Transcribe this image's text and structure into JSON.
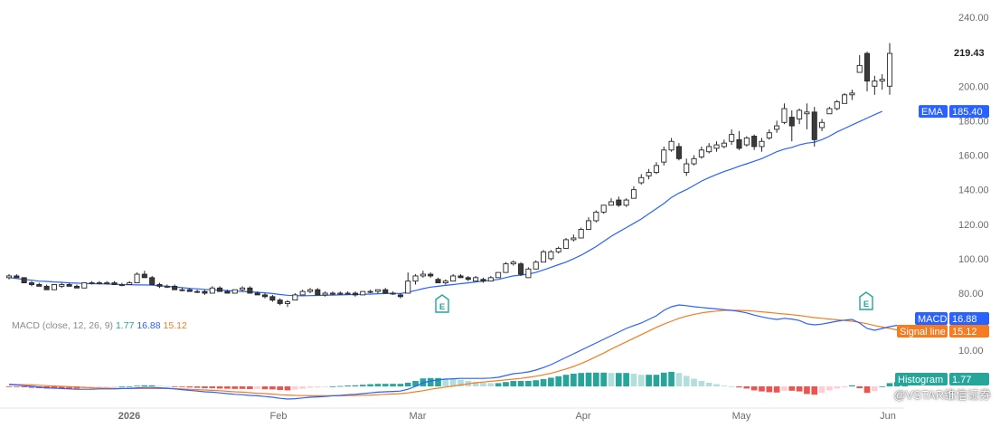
{
  "chart_data": [
    {
      "type": "candlestick",
      "panel": "price",
      "yaxis_ticks": [
        "80.00",
        "100.00",
        "120.00",
        "140.00",
        "160.00",
        "180.00",
        "200.00",
        "240.00"
      ],
      "ylim": [
        70,
        245
      ],
      "x_months": [
        "2026",
        "Feb",
        "Mar",
        "Apr",
        "May",
        "Jun"
      ],
      "last_price_label": "219.43",
      "ema_label": "EMA",
      "ema_value": "185.40",
      "earnings_marker": "E",
      "candles": [
        [
          89,
          91,
          88,
          90
        ],
        [
          90,
          91,
          89,
          89
        ],
        [
          89,
          89,
          86,
          86
        ],
        [
          86,
          87,
          84,
          85
        ],
        [
          85,
          86,
          84,
          84
        ],
        [
          84,
          85,
          82,
          82
        ],
        [
          82,
          85,
          82,
          85
        ],
        [
          84,
          86,
          83,
          85
        ],
        [
          85,
          86,
          84,
          84
        ],
        [
          84,
          85,
          83,
          83
        ],
        [
          83,
          86,
          83,
          86
        ],
        [
          86,
          87,
          85,
          86
        ],
        [
          86,
          87,
          85,
          86
        ],
        [
          86,
          87,
          85,
          86
        ],
        [
          86,
          87,
          85,
          85
        ],
        [
          85,
          86,
          84,
          85
        ],
        [
          85,
          87,
          85,
          86
        ],
        [
          86,
          92,
          86,
          91
        ],
        [
          91,
          93,
          89,
          89
        ],
        [
          89,
          90,
          85,
          85
        ],
        [
          85,
          86,
          83,
          84
        ],
        [
          84,
          85,
          83,
          84
        ],
        [
          84,
          85,
          82,
          82
        ],
        [
          82,
          83,
          81,
          82
        ],
        [
          82,
          83,
          81,
          81
        ],
        [
          81,
          82,
          80,
          81
        ],
        [
          81,
          82,
          79,
          80
        ],
        [
          80,
          84,
          80,
          83
        ],
        [
          83,
          84,
          81,
          81
        ],
        [
          81,
          82,
          80,
          80
        ],
        [
          80,
          82,
          80,
          82
        ],
        [
          82,
          84,
          81,
          83
        ],
        [
          83,
          84,
          80,
          80
        ],
        [
          80,
          81,
          79,
          79
        ],
        [
          79,
          80,
          77,
          78
        ],
        [
          78,
          79,
          75,
          76
        ],
        [
          76,
          77,
          73,
          74
        ],
        [
          74,
          76,
          72,
          75
        ],
        [
          76,
          80,
          76,
          79
        ],
        [
          79,
          82,
          79,
          81
        ],
        [
          81,
          83,
          80,
          82
        ],
        [
          82,
          83,
          79,
          79
        ],
        [
          79,
          81,
          78,
          80
        ],
        [
          80,
          81,
          79,
          80
        ],
        [
          80,
          81,
          79,
          80
        ],
        [
          80,
          81,
          79,
          80
        ],
        [
          80,
          81,
          78,
          79
        ],
        [
          79,
          81,
          79,
          81
        ],
        [
          81,
          82,
          80,
          81
        ],
        [
          81,
          82,
          80,
          82
        ],
        [
          82,
          83,
          80,
          80
        ],
        [
          80,
          81,
          79,
          80
        ],
        [
          79,
          80,
          77,
          78
        ],
        [
          80,
          92,
          80,
          87
        ],
        [
          87,
          91,
          85,
          90
        ],
        [
          90,
          93,
          89,
          91
        ],
        [
          91,
          92,
          89,
          90
        ],
        [
          88,
          89,
          86,
          86
        ],
        [
          86,
          88,
          85,
          87
        ],
        [
          87,
          91,
          87,
          90
        ],
        [
          90,
          91,
          89,
          89
        ],
        [
          89,
          90,
          87,
          88
        ],
        [
          87,
          90,
          87,
          89
        ],
        [
          88,
          89,
          86,
          87
        ],
        [
          87,
          90,
          87,
          89
        ],
        [
          89,
          92,
          89,
          92
        ],
        [
          92,
          98,
          92,
          97
        ],
        [
          97,
          99,
          96,
          98
        ],
        [
          97,
          98,
          90,
          91
        ],
        [
          89,
          95,
          89,
          94
        ],
        [
          94,
          99,
          94,
          98
        ],
        [
          98,
          105,
          98,
          104
        ],
        [
          100,
          105,
          99,
          104
        ],
        [
          104,
          107,
          103,
          106
        ],
        [
          106,
          112,
          106,
          111
        ],
        [
          111,
          114,
          110,
          112
        ],
        [
          112,
          118,
          112,
          117
        ],
        [
          117,
          124,
          117,
          122
        ],
        [
          122,
          128,
          121,
          127
        ],
        [
          127,
          131,
          126,
          131
        ],
        [
          131,
          135,
          131,
          133
        ],
        [
          134,
          136,
          130,
          131
        ],
        [
          131,
          135,
          130,
          134
        ],
        [
          135,
          142,
          135,
          140
        ],
        [
          144,
          149,
          143,
          147
        ],
        [
          148,
          152,
          146,
          150
        ],
        [
          150,
          156,
          149,
          154
        ],
        [
          156,
          165,
          154,
          163
        ],
        [
          163,
          170,
          162,
          168
        ],
        [
          165,
          167,
          157,
          158
        ],
        [
          150,
          158,
          148,
          155
        ],
        [
          155,
          160,
          154,
          158
        ],
        [
          159,
          165,
          158,
          163
        ],
        [
          162,
          167,
          161,
          165
        ],
        [
          164,
          168,
          162,
          166
        ],
        [
          165,
          169,
          164,
          167
        ],
        [
          168,
          175,
          166,
          172
        ],
        [
          169,
          174,
          163,
          164
        ],
        [
          166,
          171,
          165,
          170
        ],
        [
          171,
          172,
          163,
          165
        ],
        [
          165,
          170,
          162,
          168
        ],
        [
          170,
          175,
          169,
          173
        ],
        [
          175,
          180,
          173,
          177
        ],
        [
          179,
          190,
          178,
          187
        ],
        [
          182,
          186,
          168,
          177
        ],
        [
          181,
          187,
          178,
          186
        ],
        [
          184,
          190,
          175,
          185
        ],
        [
          185,
          188,
          165,
          169
        ],
        [
          176,
          181,
          174,
          179
        ],
        [
          184,
          188,
          184,
          187
        ],
        [
          187,
          192,
          186,
          191
        ],
        [
          190,
          196,
          190,
          195
        ],
        [
          195,
          198,
          192,
          196
        ],
        [
          208,
          218,
          208,
          212
        ],
        [
          219,
          220,
          197,
          203
        ],
        [
          200,
          206,
          195,
          203
        ],
        [
          203,
          207,
          198,
          204
        ],
        [
          200,
          225,
          195,
          219
        ]
      ],
      "ema": [
        89,
        88.5,
        88,
        87.5,
        87,
        86.8,
        86.5,
        86.3,
        86,
        85.8,
        85.6,
        85.5,
        85.4,
        85.3,
        85.2,
        85,
        84.9,
        84.8,
        84.8,
        84.6,
        84.3,
        84,
        83.6,
        83.2,
        82.8,
        82.5,
        82.2,
        82,
        81.8,
        81.5,
        81.2,
        81,
        80.8,
        80.5,
        80.2,
        79.8,
        79.2,
        78.8,
        78.6,
        78.5,
        78.6,
        78.7,
        78.8,
        78.9,
        79,
        79.1,
        79.2,
        79.3,
        79.5,
        79.7,
        79.8,
        79.9,
        79.8,
        80.5,
        81.5,
        82.6,
        83.5,
        84,
        84.5,
        85,
        85.5,
        86,
        86.5,
        87,
        87.4,
        88,
        89,
        90,
        90.5,
        91,
        92,
        93.5,
        95,
        96.5,
        98,
        100,
        102,
        104.5,
        107,
        110,
        113,
        115.5,
        118,
        120.5,
        123,
        126,
        129,
        132,
        135.5,
        138,
        140,
        142.5,
        145,
        147,
        148.8,
        150.5,
        152,
        153.6,
        155,
        156.5,
        158,
        160,
        162,
        163.5,
        164.5,
        166,
        167,
        167.5,
        169,
        171,
        173.5,
        175.5,
        177.5,
        179.5,
        181.5,
        183.5,
        185.4
      ]
    },
    {
      "type": "line",
      "panel": "macd",
      "indicator": "MACD (close, 12, 26, 9)",
      "values_text": [
        "1.77",
        "16.88",
        "15.12"
      ],
      "yaxis_ticks": [
        "10.00"
      ],
      "tags": [
        {
          "label": "MACD",
          "value": "16.88",
          "color": "#2962ff"
        },
        {
          "label": "Signal line",
          "value": "15.12",
          "color": "#f57c20"
        },
        {
          "label": "Histogram",
          "value": "1.77",
          "color": "#26a69a"
        }
      ],
      "colors": {
        "macd": "#2962ff",
        "signal": "#f57c20",
        "hist_up": "#26a69a",
        "hist_up_light": "#b2dfdb",
        "hist_down": "#ef5350",
        "hist_down_light": "#ffcdd2"
      },
      "macd": [
        0.5,
        0.4,
        0.2,
        0,
        -0.2,
        -0.4,
        -0.5,
        -0.6,
        -0.7,
        -0.8,
        -0.8,
        -0.8,
        -0.7,
        -0.7,
        -0.7,
        -0.6,
        -0.6,
        -0.4,
        -0.3,
        -0.3,
        -0.4,
        -0.5,
        -0.7,
        -0.9,
        -1.1,
        -1.3,
        -1.5,
        -1.6,
        -1.8,
        -2,
        -2.2,
        -2.3,
        -2.5,
        -2.6,
        -2.8,
        -3,
        -3.3,
        -3.5,
        -3.4,
        -3.2,
        -3,
        -2.9,
        -2.8,
        -2.6,
        -2.5,
        -2.3,
        -2.2,
        -2,
        -1.8,
        -1.6,
        -1.5,
        -1.4,
        -1.3,
        -0.8,
        0,
        1,
        1.5,
        1.8,
        2,
        2.1,
        2.2,
        2.2,
        2.2,
        2.2,
        2.3,
        2.5,
        3,
        3.5,
        3.7,
        4,
        4.5,
        5.2,
        6,
        7,
        8,
        9,
        10,
        11,
        12,
        13,
        14,
        15,
        16,
        16.8,
        17.5,
        18.5,
        19.5,
        21,
        22,
        22.5,
        22.3,
        22,
        21.8,
        21.6,
        21.4,
        21.2,
        21,
        20.7,
        20.3,
        19.7,
        19.2,
        18.8,
        18.5,
        18.8,
        18.6,
        18.2,
        17.3,
        17,
        17.2,
        17.6,
        18,
        18.3,
        18.5,
        17.5,
        16,
        15.5,
        16,
        16.5,
        16.88
      ],
      "signal": [
        0.6,
        0.5,
        0.45,
        0.4,
        0.3,
        0.2,
        0.1,
        0,
        -0.1,
        -0.2,
        -0.3,
        -0.4,
        -0.45,
        -0.5,
        -0.55,
        -0.6,
        -0.6,
        -0.6,
        -0.6,
        -0.6,
        -0.6,
        -0.6,
        -0.65,
        -0.7,
        -0.8,
        -0.9,
        -1,
        -1.1,
        -1.2,
        -1.35,
        -1.5,
        -1.6,
        -1.75,
        -1.9,
        -2,
        -2.15,
        -2.3,
        -2.4,
        -2.5,
        -2.55,
        -2.6,
        -2.6,
        -2.6,
        -2.6,
        -2.6,
        -2.55,
        -2.5,
        -2.45,
        -2.4,
        -2.3,
        -2.2,
        -2.1,
        -2,
        -1.8,
        -1.5,
        -1.2,
        -0.8,
        -0.5,
        -0.2,
        0.1,
        0.4,
        0.7,
        1,
        1.2,
        1.4,
        1.6,
        1.8,
        2,
        2.2,
        2.5,
        2.8,
        3.2,
        3.6,
        4.2,
        4.8,
        5.5,
        6.3,
        7.2,
        8.2,
        9.2,
        10.3,
        11.3,
        12.3,
        13.3,
        14.3,
        15.3,
        16.3,
        17.2,
        18,
        18.8,
        19.4,
        19.9,
        20.3,
        20.6,
        20.8,
        21,
        21,
        21,
        20.9,
        20.8,
        20.6,
        20.4,
        20.2,
        20,
        19.8,
        19.6,
        19.3,
        19,
        18.8,
        18.6,
        18.4,
        18.2,
        18,
        17.7,
        17.3,
        16.8,
        16.4,
        16,
        15.6,
        15.12
      ],
      "histogram": [
        -0.1,
        -0.1,
        -0.25,
        -0.4,
        -0.5,
        -0.6,
        -0.6,
        -0.6,
        -0.6,
        -0.6,
        -0.5,
        -0.4,
        -0.25,
        -0.2,
        -0.15,
        0,
        0,
        0.2,
        0.3,
        0.3,
        0.2,
        0.1,
        -0.05,
        -0.2,
        -0.3,
        -0.4,
        -0.5,
        -0.5,
        -0.6,
        -0.65,
        -0.7,
        -0.7,
        -0.75,
        -0.7,
        -0.8,
        -0.85,
        -1,
        -1.1,
        -0.9,
        -0.65,
        -0.4,
        -0.3,
        -0.2,
        0,
        0.1,
        0.25,
        0.3,
        0.45,
        0.6,
        0.7,
        0.7,
        0.7,
        0.7,
        1,
        1.5,
        2.2,
        2.3,
        2.3,
        2.2,
        2,
        1.8,
        1.5,
        1.2,
        1,
        0.9,
        0.9,
        1.2,
        1.5,
        1.5,
        1.5,
        1.7,
        2,
        2.4,
        2.8,
        3.2,
        3.5,
        3.7,
        3.8,
        3.8,
        3.8,
        3.7,
        3.7,
        3.7,
        3.5,
        3.2,
        3.2,
        3.2,
        3.8,
        4,
        3.7,
        2.9,
        2.1,
        1.5,
        1,
        0.6,
        0.2,
        0,
        -0.3,
        -0.6,
        -1.1,
        -1.4,
        -1.6,
        -1.7,
        -1.2,
        -1.2,
        -1.4,
        -2.1,
        -2.3,
        -1.8,
        -1.1,
        -0.6,
        -0.3,
        0.3,
        -0.5,
        -1.8,
        -1.3,
        0,
        0.9,
        1.2,
        1.77
      ]
    }
  ],
  "watermark": "@VSTAR维信证券"
}
